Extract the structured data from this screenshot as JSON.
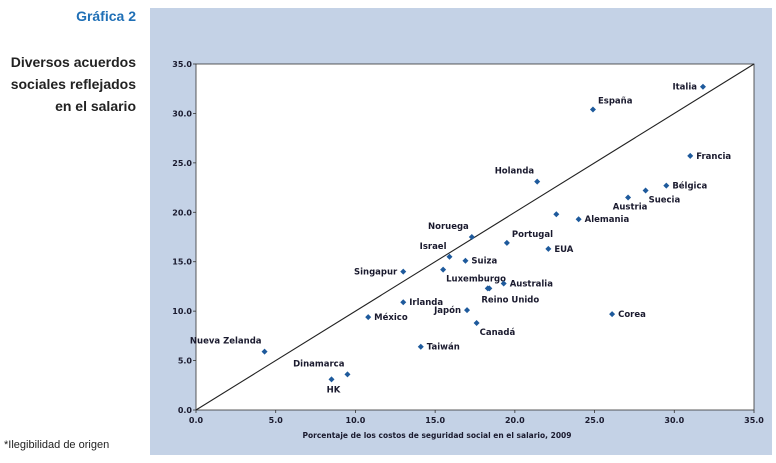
{
  "sidebar": {
    "chart_label": "Gráfica 2",
    "title_lines": [
      "Diversos acuerdos",
      "sociales reflejados",
      "en el salario"
    ],
    "footnote": "*Ilegibilidad de origen"
  },
  "colors": {
    "panel_bg": "#c4d2e6",
    "plot_bg": "#ffffff",
    "marker": "#1e5a9c",
    "accent": "#1f6fb6",
    "text": "#1a1a2e"
  },
  "chart_data": {
    "type": "scatter",
    "title": "",
    "xlabel": "Porcentaje de los costos de seguridad social en el salario, 2009",
    "ylabel": "",
    "xlim": [
      0,
      35
    ],
    "ylim": [
      0,
      35
    ],
    "x_ticks": [
      "0.0",
      "5.0",
      "10.0",
      "15.0",
      "20.0",
      "25.0",
      "30.0",
      "35.0"
    ],
    "y_ticks": [
      "0.0",
      "5.0",
      "10.0",
      "15.0",
      "20.0",
      "25.0",
      "30.0",
      "35.0"
    ],
    "grid": false,
    "reference_line": {
      "from": [
        0,
        0
      ],
      "to": [
        35,
        35
      ]
    },
    "points": [
      {
        "label": "Italia",
        "x": 31.8,
        "y": 32.7,
        "align": "left"
      },
      {
        "label": "España",
        "x": 24.9,
        "y": 30.4,
        "align": "right-above"
      },
      {
        "label": "Francia",
        "x": 31.0,
        "y": 25.7,
        "align": "right"
      },
      {
        "label": "Holanda",
        "x": 21.4,
        "y": 23.1,
        "align": "left-above"
      },
      {
        "label": "Bélgica",
        "x": 29.5,
        "y": 22.7,
        "align": "right"
      },
      {
        "label": "Suecia",
        "x": 28.2,
        "y": 22.2,
        "align": "right-below"
      },
      {
        "label": "Austria",
        "x": 27.1,
        "y": 21.5,
        "align": "left-below"
      },
      {
        "label": "",
        "x": 22.6,
        "y": 19.8,
        "align": "none"
      },
      {
        "label": "Alemania",
        "x": 24.0,
        "y": 19.3,
        "align": "right"
      },
      {
        "label": "Noruega",
        "x": 17.3,
        "y": 17.5,
        "align": "left-above"
      },
      {
        "label": "Portugal",
        "x": 19.5,
        "y": 16.9,
        "align": "right-above"
      },
      {
        "label": "EUA",
        "x": 22.1,
        "y": 16.3,
        "align": "right"
      },
      {
        "label": "Israel",
        "x": 15.9,
        "y": 15.5,
        "align": "left-above"
      },
      {
        "label": "Suiza",
        "x": 16.9,
        "y": 15.1,
        "align": "right"
      },
      {
        "label": "Singapur",
        "x": 13.0,
        "y": 14.0,
        "align": "left"
      },
      {
        "label": "Luxemburgo",
        "x": 15.5,
        "y": 14.2,
        "align": "right-below"
      },
      {
        "label": "Australia",
        "x": 19.3,
        "y": 12.8,
        "align": "right"
      },
      {
        "label": "",
        "x": 18.3,
        "y": 12.3,
        "align": "none"
      },
      {
        "label": "Reino Unido",
        "x": 18.4,
        "y": 12.3,
        "align": "below-right"
      },
      {
        "label": "Irlanda",
        "x": 13.0,
        "y": 10.9,
        "align": "right"
      },
      {
        "label": "Japón",
        "x": 17.0,
        "y": 10.1,
        "align": "left"
      },
      {
        "label": "México",
        "x": 10.8,
        "y": 9.4,
        "align": "right"
      },
      {
        "label": "Corea",
        "x": 26.1,
        "y": 9.7,
        "align": "right"
      },
      {
        "label": "Canadá",
        "x": 17.6,
        "y": 8.8,
        "align": "right-below"
      },
      {
        "label": "Taiwán",
        "x": 14.1,
        "y": 6.4,
        "align": "right"
      },
      {
        "label": "Nueva Zelanda",
        "x": 4.3,
        "y": 5.9,
        "align": "left-above"
      },
      {
        "label": "Dinamarca",
        "x": 9.5,
        "y": 3.6,
        "align": "left-above"
      },
      {
        "label": "HK",
        "x": 8.5,
        "y": 3.1,
        "align": "below"
      }
    ]
  }
}
